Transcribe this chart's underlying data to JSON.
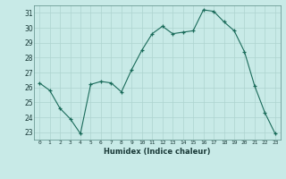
{
  "x": [
    0,
    1,
    2,
    3,
    4,
    5,
    6,
    7,
    8,
    9,
    10,
    11,
    12,
    13,
    14,
    15,
    16,
    17,
    18,
    19,
    20,
    21,
    22,
    23
  ],
  "y": [
    26.3,
    25.8,
    24.6,
    23.9,
    22.9,
    26.2,
    26.4,
    26.3,
    25.7,
    27.2,
    28.5,
    29.6,
    30.1,
    29.6,
    29.7,
    29.8,
    31.2,
    31.1,
    30.4,
    29.8,
    28.4,
    26.1,
    24.3,
    22.9
  ],
  "line_color": "#1a6b5a",
  "bg_color": "#c8eae7",
  "grid_color": "#aed4d0",
  "xlabel": "Humidex (Indice chaleur)",
  "ylim": [
    22.5,
    31.5
  ],
  "xlim": [
    -0.5,
    23.5
  ],
  "yticks": [
    23,
    24,
    25,
    26,
    27,
    28,
    29,
    30,
    31
  ],
  "xticks": [
    0,
    1,
    2,
    3,
    4,
    5,
    6,
    7,
    8,
    9,
    10,
    11,
    12,
    13,
    14,
    15,
    16,
    17,
    18,
    19,
    20,
    21,
    22,
    23
  ]
}
